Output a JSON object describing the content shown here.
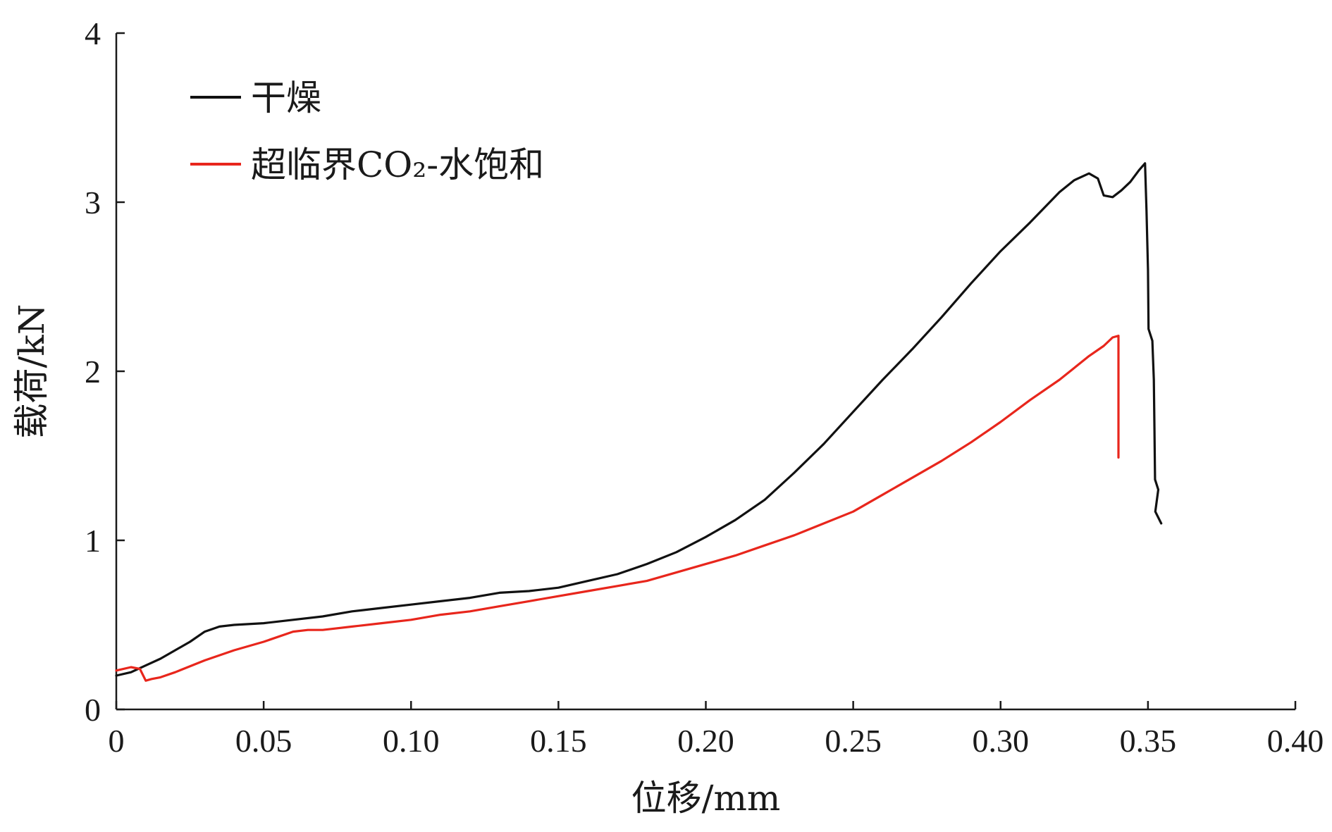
{
  "chart_data": {
    "type": "line",
    "title": "",
    "xlabel": "位移/mm",
    "ylabel": "载荷/kN",
    "xlim": [
      0,
      0.4
    ],
    "ylim": [
      0,
      4
    ],
    "x_ticks": [
      {
        "value": 0,
        "label": "0"
      },
      {
        "value": 0.05,
        "label": "0.05"
      },
      {
        "value": 0.1,
        "label": "0.10"
      },
      {
        "value": 0.15,
        "label": "0.15"
      },
      {
        "value": 0.2,
        "label": "0.20"
      },
      {
        "value": 0.25,
        "label": "0.25"
      },
      {
        "value": 0.3,
        "label": "0.30"
      },
      {
        "value": 0.35,
        "label": "0.35"
      },
      {
        "value": 0.4,
        "label": "0.40"
      }
    ],
    "y_ticks": [
      {
        "value": 0,
        "label": "0"
      },
      {
        "value": 1,
        "label": "1"
      },
      {
        "value": 2,
        "label": "2"
      },
      {
        "value": 3,
        "label": "3"
      },
      {
        "value": 4,
        "label": "4"
      }
    ],
    "grid": false,
    "legend_position": "top-left",
    "series": [
      {
        "name": "干燥",
        "color": "#111111",
        "points": [
          [
            0.0,
            0.2
          ],
          [
            0.005,
            0.22
          ],
          [
            0.01,
            0.26
          ],
          [
            0.015,
            0.3
          ],
          [
            0.02,
            0.35
          ],
          [
            0.025,
            0.4
          ],
          [
            0.03,
            0.46
          ],
          [
            0.035,
            0.49
          ],
          [
            0.04,
            0.5
          ],
          [
            0.05,
            0.51
          ],
          [
            0.06,
            0.53
          ],
          [
            0.07,
            0.55
          ],
          [
            0.08,
            0.58
          ],
          [
            0.09,
            0.6
          ],
          [
            0.1,
            0.62
          ],
          [
            0.11,
            0.64
          ],
          [
            0.12,
            0.66
          ],
          [
            0.13,
            0.69
          ],
          [
            0.14,
            0.7
          ],
          [
            0.15,
            0.72
          ],
          [
            0.16,
            0.76
          ],
          [
            0.17,
            0.8
          ],
          [
            0.18,
            0.86
          ],
          [
            0.19,
            0.93
          ],
          [
            0.2,
            1.02
          ],
          [
            0.21,
            1.12
          ],
          [
            0.22,
            1.24
          ],
          [
            0.23,
            1.4
          ],
          [
            0.24,
            1.57
          ],
          [
            0.25,
            1.76
          ],
          [
            0.26,
            1.95
          ],
          [
            0.27,
            2.13
          ],
          [
            0.28,
            2.32
          ],
          [
            0.29,
            2.52
          ],
          [
            0.3,
            2.71
          ],
          [
            0.31,
            2.88
          ],
          [
            0.32,
            3.06
          ],
          [
            0.325,
            3.13
          ],
          [
            0.33,
            3.17
          ],
          [
            0.333,
            3.14
          ],
          [
            0.335,
            3.04
          ],
          [
            0.338,
            3.03
          ],
          [
            0.341,
            3.07
          ],
          [
            0.344,
            3.12
          ],
          [
            0.347,
            3.19
          ],
          [
            0.349,
            3.23
          ],
          [
            0.3495,
            2.95
          ],
          [
            0.35,
            2.6
          ],
          [
            0.3502,
            2.25
          ],
          [
            0.3515,
            2.18
          ],
          [
            0.352,
            1.95
          ],
          [
            0.3522,
            1.65
          ],
          [
            0.3524,
            1.36
          ],
          [
            0.3535,
            1.3
          ],
          [
            0.3525,
            1.17
          ],
          [
            0.3545,
            1.1
          ]
        ]
      },
      {
        "name": "超临界CO₂-水饱和",
        "color": "#e8261c",
        "points": [
          [
            0.0,
            0.23
          ],
          [
            0.005,
            0.25
          ],
          [
            0.008,
            0.24
          ],
          [
            0.01,
            0.17
          ],
          [
            0.012,
            0.18
          ],
          [
            0.015,
            0.19
          ],
          [
            0.02,
            0.22
          ],
          [
            0.03,
            0.29
          ],
          [
            0.04,
            0.35
          ],
          [
            0.05,
            0.4
          ],
          [
            0.06,
            0.46
          ],
          [
            0.065,
            0.47
          ],
          [
            0.07,
            0.47
          ],
          [
            0.08,
            0.49
          ],
          [
            0.09,
            0.51
          ],
          [
            0.1,
            0.53
          ],
          [
            0.11,
            0.56
          ],
          [
            0.12,
            0.58
          ],
          [
            0.13,
            0.61
          ],
          [
            0.14,
            0.64
          ],
          [
            0.15,
            0.67
          ],
          [
            0.16,
            0.7
          ],
          [
            0.17,
            0.73
          ],
          [
            0.18,
            0.76
          ],
          [
            0.19,
            0.81
          ],
          [
            0.2,
            0.86
          ],
          [
            0.21,
            0.91
          ],
          [
            0.22,
            0.97
          ],
          [
            0.23,
            1.03
          ],
          [
            0.24,
            1.1
          ],
          [
            0.25,
            1.17
          ],
          [
            0.26,
            1.27
          ],
          [
            0.27,
            1.37
          ],
          [
            0.28,
            1.47
          ],
          [
            0.29,
            1.58
          ],
          [
            0.3,
            1.7
          ],
          [
            0.31,
            1.83
          ],
          [
            0.32,
            1.95
          ],
          [
            0.33,
            2.09
          ],
          [
            0.335,
            2.15
          ],
          [
            0.338,
            2.2
          ],
          [
            0.34,
            2.21
          ],
          [
            0.34,
            1.49
          ]
        ]
      }
    ]
  }
}
